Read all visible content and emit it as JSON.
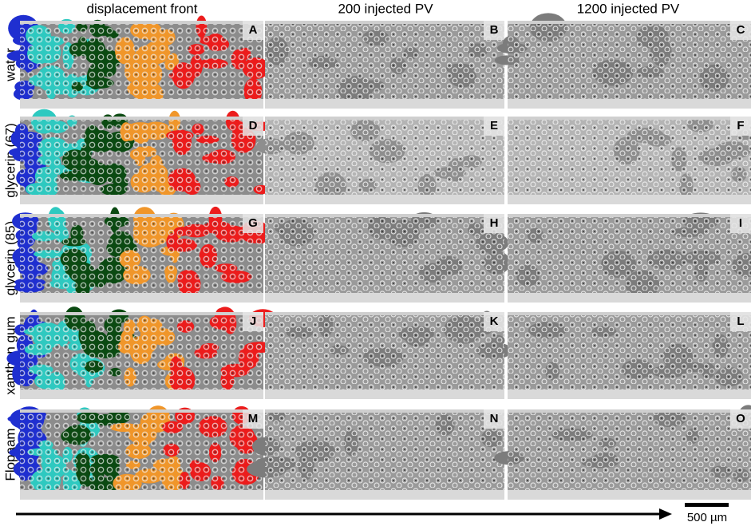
{
  "column_headers": [
    "displacement front",
    "200 injected PV",
    "1200 injected PV"
  ],
  "rows": [
    {
      "label": "water",
      "panels": [
        "A",
        "B",
        "C"
      ]
    },
    {
      "label": "glycerin (67)",
      "panels": [
        "D",
        "E",
        "F"
      ]
    },
    {
      "label": "glycerin (85)",
      "panels": [
        "G",
        "H",
        "I"
      ]
    },
    {
      "label": "xanthan gum",
      "panels": [
        "J",
        "K",
        "L"
      ]
    },
    {
      "label": "Flopaam",
      "panels": [
        "M",
        "N",
        "O"
      ]
    }
  ],
  "scale_bar": "500 µm"
}
